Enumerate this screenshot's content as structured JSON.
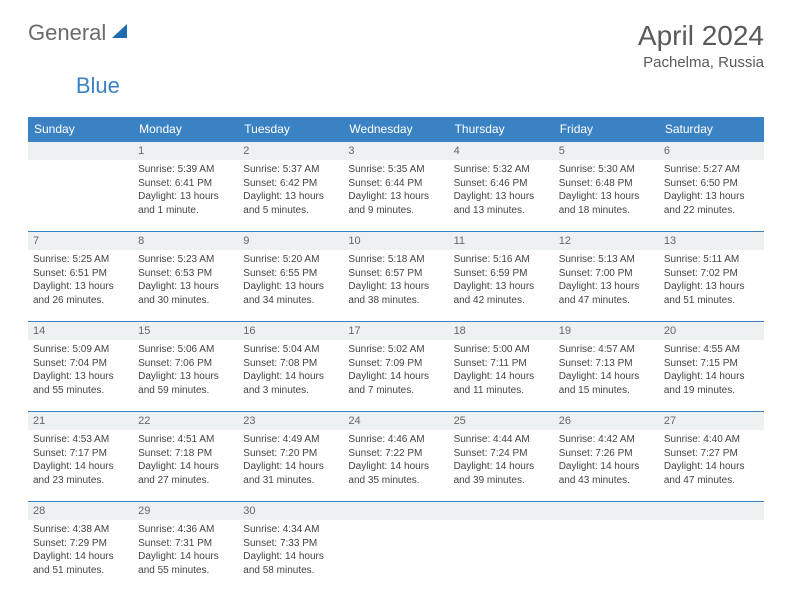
{
  "logo": {
    "general": "General",
    "blue": "Blue",
    "shape_color": "#1f6bb0"
  },
  "title": "April 2024",
  "subtitle": "Pachelma, Russia",
  "colors": {
    "header_bg": "#3b82c4",
    "header_fg": "#ffffff",
    "daynum_bg": "#eef1f2",
    "rule": "#3b82c4",
    "text": "#444444"
  },
  "day_headers": [
    "Sunday",
    "Monday",
    "Tuesday",
    "Wednesday",
    "Thursday",
    "Friday",
    "Saturday"
  ],
  "weeks": [
    [
      {
        "n": "",
        "l": []
      },
      {
        "n": "1",
        "l": [
          "Sunrise: 5:39 AM",
          "Sunset: 6:41 PM",
          "Daylight: 13 hours",
          "and 1 minute."
        ]
      },
      {
        "n": "2",
        "l": [
          "Sunrise: 5:37 AM",
          "Sunset: 6:42 PM",
          "Daylight: 13 hours",
          "and 5 minutes."
        ]
      },
      {
        "n": "3",
        "l": [
          "Sunrise: 5:35 AM",
          "Sunset: 6:44 PM",
          "Daylight: 13 hours",
          "and 9 minutes."
        ]
      },
      {
        "n": "4",
        "l": [
          "Sunrise: 5:32 AM",
          "Sunset: 6:46 PM",
          "Daylight: 13 hours",
          "and 13 minutes."
        ]
      },
      {
        "n": "5",
        "l": [
          "Sunrise: 5:30 AM",
          "Sunset: 6:48 PM",
          "Daylight: 13 hours",
          "and 18 minutes."
        ]
      },
      {
        "n": "6",
        "l": [
          "Sunrise: 5:27 AM",
          "Sunset: 6:50 PM",
          "Daylight: 13 hours",
          "and 22 minutes."
        ]
      }
    ],
    [
      {
        "n": "7",
        "l": [
          "Sunrise: 5:25 AM",
          "Sunset: 6:51 PM",
          "Daylight: 13 hours",
          "and 26 minutes."
        ]
      },
      {
        "n": "8",
        "l": [
          "Sunrise: 5:23 AM",
          "Sunset: 6:53 PM",
          "Daylight: 13 hours",
          "and 30 minutes."
        ]
      },
      {
        "n": "9",
        "l": [
          "Sunrise: 5:20 AM",
          "Sunset: 6:55 PM",
          "Daylight: 13 hours",
          "and 34 minutes."
        ]
      },
      {
        "n": "10",
        "l": [
          "Sunrise: 5:18 AM",
          "Sunset: 6:57 PM",
          "Daylight: 13 hours",
          "and 38 minutes."
        ]
      },
      {
        "n": "11",
        "l": [
          "Sunrise: 5:16 AM",
          "Sunset: 6:59 PM",
          "Daylight: 13 hours",
          "and 42 minutes."
        ]
      },
      {
        "n": "12",
        "l": [
          "Sunrise: 5:13 AM",
          "Sunset: 7:00 PM",
          "Daylight: 13 hours",
          "and 47 minutes."
        ]
      },
      {
        "n": "13",
        "l": [
          "Sunrise: 5:11 AM",
          "Sunset: 7:02 PM",
          "Daylight: 13 hours",
          "and 51 minutes."
        ]
      }
    ],
    [
      {
        "n": "14",
        "l": [
          "Sunrise: 5:09 AM",
          "Sunset: 7:04 PM",
          "Daylight: 13 hours",
          "and 55 minutes."
        ]
      },
      {
        "n": "15",
        "l": [
          "Sunrise: 5:06 AM",
          "Sunset: 7:06 PM",
          "Daylight: 13 hours",
          "and 59 minutes."
        ]
      },
      {
        "n": "16",
        "l": [
          "Sunrise: 5:04 AM",
          "Sunset: 7:08 PM",
          "Daylight: 14 hours",
          "and 3 minutes."
        ]
      },
      {
        "n": "17",
        "l": [
          "Sunrise: 5:02 AM",
          "Sunset: 7:09 PM",
          "Daylight: 14 hours",
          "and 7 minutes."
        ]
      },
      {
        "n": "18",
        "l": [
          "Sunrise: 5:00 AM",
          "Sunset: 7:11 PM",
          "Daylight: 14 hours",
          "and 11 minutes."
        ]
      },
      {
        "n": "19",
        "l": [
          "Sunrise: 4:57 AM",
          "Sunset: 7:13 PM",
          "Daylight: 14 hours",
          "and 15 minutes."
        ]
      },
      {
        "n": "20",
        "l": [
          "Sunrise: 4:55 AM",
          "Sunset: 7:15 PM",
          "Daylight: 14 hours",
          "and 19 minutes."
        ]
      }
    ],
    [
      {
        "n": "21",
        "l": [
          "Sunrise: 4:53 AM",
          "Sunset: 7:17 PM",
          "Daylight: 14 hours",
          "and 23 minutes."
        ]
      },
      {
        "n": "22",
        "l": [
          "Sunrise: 4:51 AM",
          "Sunset: 7:18 PM",
          "Daylight: 14 hours",
          "and 27 minutes."
        ]
      },
      {
        "n": "23",
        "l": [
          "Sunrise: 4:49 AM",
          "Sunset: 7:20 PM",
          "Daylight: 14 hours",
          "and 31 minutes."
        ]
      },
      {
        "n": "24",
        "l": [
          "Sunrise: 4:46 AM",
          "Sunset: 7:22 PM",
          "Daylight: 14 hours",
          "and 35 minutes."
        ]
      },
      {
        "n": "25",
        "l": [
          "Sunrise: 4:44 AM",
          "Sunset: 7:24 PM",
          "Daylight: 14 hours",
          "and 39 minutes."
        ]
      },
      {
        "n": "26",
        "l": [
          "Sunrise: 4:42 AM",
          "Sunset: 7:26 PM",
          "Daylight: 14 hours",
          "and 43 minutes."
        ]
      },
      {
        "n": "27",
        "l": [
          "Sunrise: 4:40 AM",
          "Sunset: 7:27 PM",
          "Daylight: 14 hours",
          "and 47 minutes."
        ]
      }
    ],
    [
      {
        "n": "28",
        "l": [
          "Sunrise: 4:38 AM",
          "Sunset: 7:29 PM",
          "Daylight: 14 hours",
          "and 51 minutes."
        ]
      },
      {
        "n": "29",
        "l": [
          "Sunrise: 4:36 AM",
          "Sunset: 7:31 PM",
          "Daylight: 14 hours",
          "and 55 minutes."
        ]
      },
      {
        "n": "30",
        "l": [
          "Sunrise: 4:34 AM",
          "Sunset: 7:33 PM",
          "Daylight: 14 hours",
          "and 58 minutes."
        ]
      },
      {
        "n": "",
        "l": []
      },
      {
        "n": "",
        "l": []
      },
      {
        "n": "",
        "l": []
      },
      {
        "n": "",
        "l": []
      }
    ]
  ]
}
